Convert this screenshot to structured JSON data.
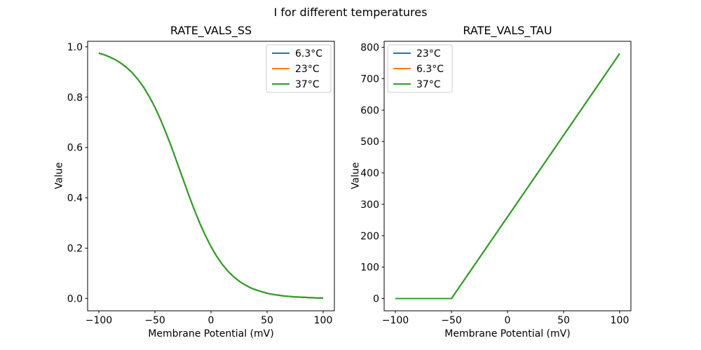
{
  "figure": {
    "suptitle": "I for different temperatures",
    "background": "#ffffff",
    "text_color": "#000000"
  },
  "chart_data": [
    {
      "type": "line",
      "title": "RATE_VALS_SS",
      "xlabel": "Membrane Potential (mV)",
      "ylabel": "Value",
      "xlim": [
        -110,
        110
      ],
      "ylim": [
        -0.049,
        1.022
      ],
      "xticks": [
        -100,
        -50,
        0,
        50,
        100
      ],
      "xtick_labels": [
        "−100",
        "−50",
        "0",
        "50",
        "100"
      ],
      "yticks": [
        0.0,
        0.2,
        0.4,
        0.6,
        0.8,
        1.0
      ],
      "ytick_labels": [
        "0.0",
        "0.2",
        "0.4",
        "0.6",
        "0.8",
        "1.0"
      ],
      "grid": false,
      "legend_position": "upper-right",
      "legend_entries": [
        {
          "label": "6.3°C",
          "color": "#1f77b4"
        },
        {
          "label": "23°C",
          "color": "#ff7f0e"
        },
        {
          "label": "37°C",
          "color": "#2ca02c"
        }
      ],
      "x": [
        -100,
        -95,
        -90,
        -85,
        -80,
        -75,
        -70,
        -65,
        -60,
        -55,
        -50,
        -45,
        -40,
        -35,
        -30,
        -25,
        -20,
        -15,
        -10,
        -5,
        0,
        5,
        10,
        15,
        20,
        25,
        30,
        35,
        40,
        45,
        50,
        55,
        60,
        65,
        70,
        75,
        80,
        85,
        90,
        95,
        100
      ],
      "series": [
        {
          "name": "6.3°C",
          "color": "#1f77b4",
          "values": [
            0.975,
            0.968,
            0.959,
            0.948,
            0.934,
            0.917,
            0.896,
            0.87,
            0.839,
            0.802,
            0.76,
            0.711,
            0.657,
            0.599,
            0.537,
            0.475,
            0.413,
            0.354,
            0.299,
            0.25,
            0.206,
            0.168,
            0.136,
            0.109,
            0.087,
            0.069,
            0.055,
            0.043,
            0.034,
            0.027,
            0.021,
            0.016,
            0.013,
            0.01,
            0.008,
            0.006,
            0.005,
            0.004,
            0.003,
            0.002,
            0.002
          ]
        },
        {
          "name": "23°C",
          "color": "#ff7f0e",
          "values": [
            0.975,
            0.968,
            0.959,
            0.948,
            0.934,
            0.917,
            0.896,
            0.87,
            0.839,
            0.802,
            0.76,
            0.711,
            0.657,
            0.599,
            0.537,
            0.475,
            0.413,
            0.354,
            0.299,
            0.25,
            0.206,
            0.168,
            0.136,
            0.109,
            0.087,
            0.069,
            0.055,
            0.043,
            0.034,
            0.027,
            0.021,
            0.016,
            0.013,
            0.01,
            0.008,
            0.006,
            0.005,
            0.004,
            0.003,
            0.002,
            0.002
          ]
        },
        {
          "name": "37°C",
          "color": "#2ca02c",
          "values": [
            0.975,
            0.968,
            0.959,
            0.948,
            0.934,
            0.917,
            0.896,
            0.87,
            0.839,
            0.802,
            0.76,
            0.711,
            0.657,
            0.599,
            0.537,
            0.475,
            0.413,
            0.354,
            0.299,
            0.25,
            0.206,
            0.168,
            0.136,
            0.109,
            0.087,
            0.069,
            0.055,
            0.043,
            0.034,
            0.027,
            0.021,
            0.016,
            0.013,
            0.01,
            0.008,
            0.006,
            0.005,
            0.004,
            0.003,
            0.002,
            0.002
          ]
        }
      ],
      "note": "all three temperature curves overlap exactly; only the last-drawn green curve is visible"
    },
    {
      "type": "line",
      "title": "RATE_VALS_TAU",
      "xlabel": "Membrane Potential (mV)",
      "ylabel": "Value",
      "xlim": [
        -110,
        110
      ],
      "ylim": [
        -39,
        819
      ],
      "xticks": [
        -100,
        -50,
        0,
        50,
        100
      ],
      "xtick_labels": [
        "−100",
        "−50",
        "0",
        "50",
        "100"
      ],
      "yticks": [
        0,
        100,
        200,
        300,
        400,
        500,
        600,
        700,
        800
      ],
      "ytick_labels": [
        "0",
        "100",
        "200",
        "300",
        "400",
        "500",
        "600",
        "700",
        "800"
      ],
      "grid": false,
      "legend_position": "upper-left",
      "legend_entries": [
        {
          "label": "23°C",
          "color": "#1f77b4"
        },
        {
          "label": "6.3°C",
          "color": "#ff7f0e"
        },
        {
          "label": "37°C",
          "color": "#2ca02c"
        }
      ],
      "x": [
        -100,
        -95,
        -90,
        -85,
        -80,
        -75,
        -70,
        -65,
        -60,
        -55,
        -50,
        -45,
        -40,
        -35,
        -30,
        -25,
        -20,
        -15,
        -10,
        -5,
        0,
        5,
        10,
        15,
        20,
        25,
        30,
        35,
        40,
        45,
        50,
        55,
        60,
        65,
        70,
        75,
        80,
        85,
        90,
        95,
        100
      ],
      "series": [
        {
          "name": "23°C",
          "color": "#1f77b4",
          "values": [
            0,
            0,
            0,
            0,
            0,
            0,
            0,
            0,
            0,
            0,
            0,
            26,
            52,
            78,
            104,
            130,
            156,
            182,
            208,
            234,
            260,
            286,
            312,
            338,
            364,
            390,
            416,
            442,
            468,
            494,
            520,
            546,
            572,
            598,
            624,
            650,
            676,
            702,
            728,
            754,
            780
          ]
        },
        {
          "name": "6.3°C",
          "color": "#ff7f0e",
          "values": [
            0,
            0,
            0,
            0,
            0,
            0,
            0,
            0,
            0,
            0,
            0,
            26,
            52,
            78,
            104,
            130,
            156,
            182,
            208,
            234,
            260,
            286,
            312,
            338,
            364,
            390,
            416,
            442,
            468,
            494,
            520,
            546,
            572,
            598,
            624,
            650,
            676,
            702,
            728,
            754,
            780
          ]
        },
        {
          "name": "37°C",
          "color": "#2ca02c",
          "values": [
            0,
            0,
            0,
            0,
            0,
            0,
            0,
            0,
            0,
            0,
            0,
            26,
            52,
            78,
            104,
            130,
            156,
            182,
            208,
            234,
            260,
            286,
            312,
            338,
            364,
            390,
            416,
            442,
            468,
            494,
            520,
            546,
            572,
            598,
            624,
            650,
            676,
            702,
            728,
            754,
            780
          ]
        }
      ],
      "note": "all three temperature curves overlap exactly; only the last-drawn green curve is visible"
    }
  ]
}
